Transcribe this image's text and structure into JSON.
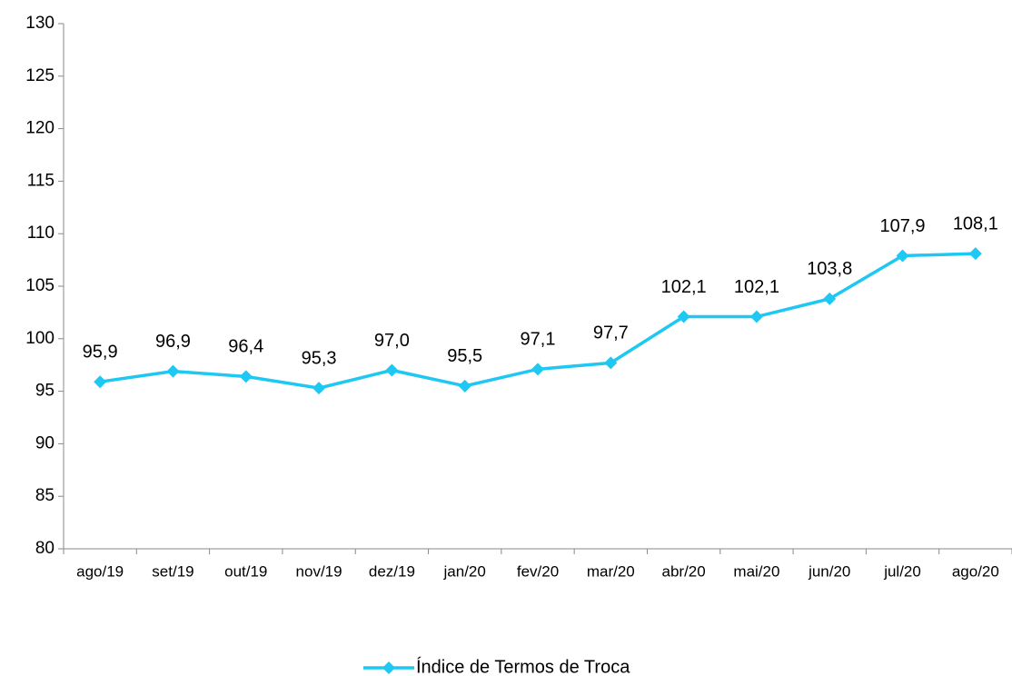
{
  "chart_data": {
    "type": "line",
    "categories": [
      "ago/19",
      "set/19",
      "out/19",
      "nov/19",
      "dez/19",
      "jan/20",
      "fev/20",
      "mar/20",
      "abr/20",
      "mai/20",
      "jun/20",
      "jul/20",
      "ago/20"
    ],
    "series": [
      {
        "name": "Índice de Termos de Troca",
        "color": "#1ec8f2",
        "values": [
          95.9,
          96.9,
          96.4,
          95.3,
          97.0,
          95.5,
          97.1,
          97.7,
          102.1,
          102.1,
          103.8,
          107.9,
          108.1
        ],
        "value_labels": [
          "95,9",
          "96,9",
          "96,4",
          "95,3",
          "97,0",
          "95,5",
          "97,1",
          "97,7",
          "102,1",
          "102,1",
          "103,8",
          "107,9",
          "108,1"
        ]
      }
    ],
    "ylim": [
      80,
      130
    ],
    "yticks": [
      80,
      85,
      90,
      95,
      100,
      105,
      110,
      115,
      120,
      125,
      130
    ],
    "grid": false,
    "legend": "bottom"
  }
}
